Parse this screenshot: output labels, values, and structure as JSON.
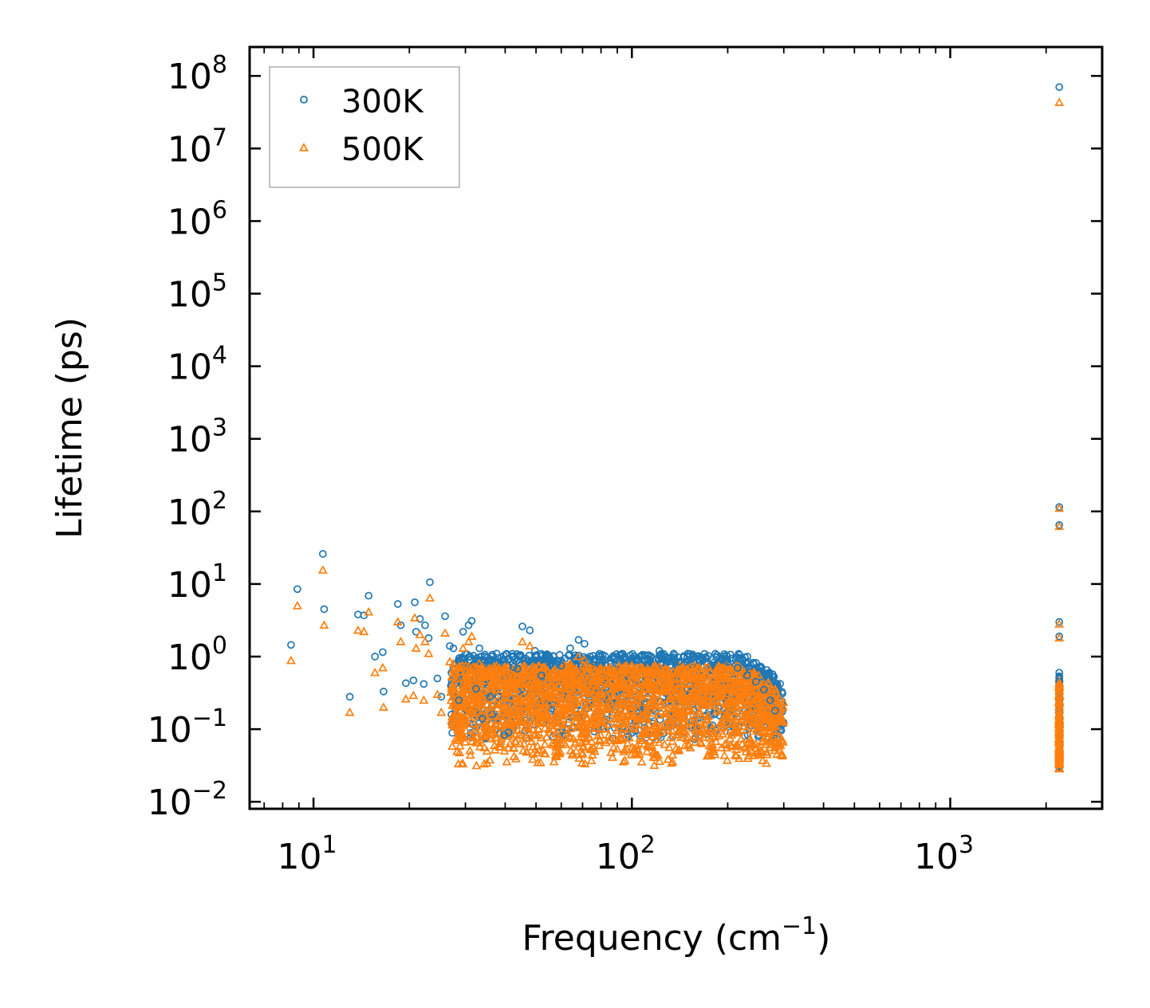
{
  "chart_data": {
    "type": "scatter",
    "title": "",
    "xlabel": "Frequency (cm",
    "xlabel_sup": "−1",
    "xlabel_end": ")",
    "ylabel": "Lifetime (ps)",
    "xscale": "log",
    "yscale": "log",
    "xlim": [
      6.3,
      3000
    ],
    "ylim": [
      0.008,
      250000000.0
    ],
    "x_ticks": [
      {
        "value": 10,
        "base": "10",
        "exp": "1"
      },
      {
        "value": 100,
        "base": "10",
        "exp": "2"
      },
      {
        "value": 1000,
        "base": "10",
        "exp": "3"
      }
    ],
    "y_ticks": [
      {
        "value": 0.01,
        "base": "10",
        "exp": "−2"
      },
      {
        "value": 0.1,
        "base": "10",
        "exp": "−1"
      },
      {
        "value": 1,
        "base": "10",
        "exp": "0"
      },
      {
        "value": 10,
        "base": "10",
        "exp": "1"
      },
      {
        "value": 100,
        "base": "10",
        "exp": "2"
      },
      {
        "value": 1000,
        "base": "10",
        "exp": "3"
      },
      {
        "value": 10000,
        "base": "10",
        "exp": "4"
      },
      {
        "value": 100000,
        "base": "10",
        "exp": "5"
      },
      {
        "value": 1000000,
        "base": "10",
        "exp": "6"
      },
      {
        "value": 10000000,
        "base": "10",
        "exp": "7"
      },
      {
        "value": 100000000,
        "base": "10",
        "exp": "8"
      }
    ],
    "legend": {
      "position": "top-left",
      "entries": [
        "300K",
        "500K"
      ]
    },
    "series": [
      {
        "name": "300K",
        "marker": "circle",
        "color": "#1f77b4",
        "points": [
          [
            8.5,
            1.45
          ],
          [
            8.9,
            8.5
          ],
          [
            10.7,
            26
          ],
          [
            10.8,
            4.5
          ],
          [
            13.0,
            0.28
          ],
          [
            13.8,
            3.8
          ],
          [
            14.4,
            3.7
          ],
          [
            14.9,
            6.9
          ],
          [
            15.6,
            1.0
          ],
          [
            16.5,
            1.15
          ],
          [
            16.6,
            0.33
          ],
          [
            18.4,
            5.3
          ],
          [
            18.8,
            2.7
          ],
          [
            19.5,
            0.43
          ],
          [
            20.6,
            0.47
          ],
          [
            20.8,
            5.6
          ],
          [
            21.0,
            2.2
          ],
          [
            21.6,
            3.3
          ],
          [
            22.2,
            0.42
          ],
          [
            22.4,
            2.7
          ],
          [
            23.0,
            1.8
          ],
          [
            23.2,
            10.6
          ],
          [
            24.5,
            0.5
          ],
          [
            25.2,
            0.28
          ],
          [
            25.9,
            3.6
          ],
          [
            26.8,
            1.4
          ],
          [
            27.5,
            1.3
          ],
          [
            28.6,
            0.25
          ],
          [
            29.5,
            2.2
          ],
          [
            30.7,
            2.7
          ],
          [
            31.4,
            3.1
          ],
          [
            32.4,
            0.36
          ],
          [
            33.2,
            1.3
          ],
          [
            33.9,
            0.14
          ],
          [
            34.5,
            1.0
          ],
          [
            35.9,
            0.28
          ],
          [
            36.4,
            0.16
          ],
          [
            37.6,
            1.1
          ],
          [
            39.8,
            0.083
          ],
          [
            41.0,
            0.09
          ],
          [
            42.5,
            0.72
          ],
          [
            43.7,
            0.68
          ],
          [
            45.3,
            2.6
          ],
          [
            47.8,
            2.3
          ],
          [
            49.6,
            1.2
          ],
          [
            52.0,
            0.55
          ],
          [
            55.0,
            0.9
          ],
          [
            60.0,
            0.75
          ],
          [
            64.0,
            1.3
          ],
          [
            68.0,
            1.7
          ],
          [
            71.0,
            1.5
          ],
          [
            76.0,
            0.85
          ],
          [
            82.0,
            0.9
          ],
          [
            88.0,
            0.95
          ],
          [
            95.0,
            1.0
          ],
          [
            105.0,
            0.9
          ],
          [
            115.0,
            1.0
          ],
          [
            122.0,
            1.2
          ],
          [
            130.0,
            0.95
          ],
          [
            140.0,
            0.85
          ],
          [
            150.0,
            1.1
          ],
          [
            160.0,
            1.0
          ],
          [
            172.0,
            0.95
          ],
          [
            185.0,
            1.05
          ],
          [
            200.0,
            0.85
          ],
          [
            215.0,
            0.7
          ],
          [
            230.0,
            0.55
          ],
          [
            245.0,
            0.45
          ],
          [
            260.0,
            0.35
          ],
          [
            272.0,
            0.25
          ],
          [
            282.0,
            0.18
          ],
          [
            293.0,
            0.1
          ],
          [
            2200,
            70000000.0
          ],
          [
            2200,
            115
          ],
          [
            2200,
            65
          ],
          [
            2200,
            3.0
          ],
          [
            2200,
            1.9
          ],
          [
            2200,
            0.6
          ],
          [
            2200,
            0.45
          ],
          [
            2200,
            0.35
          ],
          [
            2200,
            0.28
          ],
          [
            2200,
            0.22
          ],
          [
            2200,
            0.17
          ],
          [
            2200,
            0.13
          ],
          [
            2200,
            0.1
          ],
          [
            2200,
            0.075
          ],
          [
            2200,
            0.055
          ],
          [
            2200,
            0.042
          ],
          [
            2200,
            0.032
          ]
        ]
      },
      {
        "name": "500K",
        "marker": "triangle",
        "color": "#ff7f0e",
        "points": [
          [
            8.5,
            0.88
          ],
          [
            8.9,
            5.0
          ],
          [
            10.7,
            15.5
          ],
          [
            10.8,
            2.7
          ],
          [
            13.0,
            0.17
          ],
          [
            13.8,
            2.3
          ],
          [
            14.4,
            2.2
          ],
          [
            14.9,
            4.1
          ],
          [
            15.6,
            0.6
          ],
          [
            16.5,
            0.7
          ],
          [
            16.6,
            0.2
          ],
          [
            18.4,
            3.0
          ],
          [
            18.8,
            1.6
          ],
          [
            19.5,
            0.26
          ],
          [
            20.6,
            0.29
          ],
          [
            20.8,
            3.4
          ],
          [
            21.0,
            1.3
          ],
          [
            21.6,
            2.0
          ],
          [
            22.2,
            0.25
          ],
          [
            22.4,
            1.6
          ],
          [
            23.0,
            1.1
          ],
          [
            23.2,
            6.4
          ],
          [
            24.5,
            0.3
          ],
          [
            25.2,
            0.17
          ],
          [
            25.9,
            2.1
          ],
          [
            26.8,
            0.85
          ],
          [
            27.5,
            0.8
          ],
          [
            28.6,
            0.15
          ],
          [
            29.5,
            1.3
          ],
          [
            30.7,
            1.6
          ],
          [
            31.4,
            1.9
          ],
          [
            32.4,
            0.22
          ],
          [
            33.2,
            0.8
          ],
          [
            33.9,
            0.086
          ],
          [
            34.5,
            0.6
          ],
          [
            35.9,
            0.17
          ],
          [
            36.4,
            0.098
          ],
          [
            37.6,
            0.66
          ],
          [
            39.8,
            0.05
          ],
          [
            41.0,
            0.055
          ],
          [
            42.5,
            0.44
          ],
          [
            43.7,
            0.41
          ],
          [
            45.3,
            1.6
          ],
          [
            47.8,
            1.4
          ],
          [
            49.6,
            0.7
          ],
          [
            52.0,
            0.33
          ],
          [
            55.0,
            0.55
          ],
          [
            60.0,
            0.45
          ],
          [
            64.0,
            0.8
          ],
          [
            68.0,
            1.0
          ],
          [
            71.0,
            0.9
          ],
          [
            76.0,
            0.5
          ],
          [
            82.0,
            0.55
          ],
          [
            88.0,
            0.57
          ],
          [
            95.0,
            0.6
          ],
          [
            105.0,
            0.55
          ],
          [
            115.0,
            0.6
          ],
          [
            122.0,
            0.72
          ],
          [
            130.0,
            0.57
          ],
          [
            140.0,
            0.5
          ],
          [
            150.0,
            0.66
          ],
          [
            160.0,
            0.6
          ],
          [
            172.0,
            0.57
          ],
          [
            185.0,
            0.63
          ],
          [
            200.0,
            0.5
          ],
          [
            215.0,
            0.42
          ],
          [
            230.0,
            0.33
          ],
          [
            245.0,
            0.27
          ],
          [
            260.0,
            0.21
          ],
          [
            272.0,
            0.15
          ],
          [
            282.0,
            0.11
          ],
          [
            293.0,
            0.06
          ],
          [
            2200,
            43000000.0
          ],
          [
            2200,
            110
          ],
          [
            2200,
            62
          ],
          [
            2200,
            2.8
          ],
          [
            2200,
            1.8
          ],
          [
            2200,
            0.5
          ],
          [
            2200,
            0.38
          ],
          [
            2200,
            0.3
          ],
          [
            2200,
            0.24
          ],
          [
            2200,
            0.19
          ],
          [
            2200,
            0.15
          ],
          [
            2200,
            0.12
          ],
          [
            2200,
            0.09
          ],
          [
            2200,
            0.068
          ],
          [
            2200,
            0.05
          ],
          [
            2200,
            0.038
          ],
          [
            2200,
            0.029
          ]
        ]
      }
    ],
    "dense_band": {
      "note": "Many overlapping points between ~27 and ~300 cm-1",
      "x_range": [
        27,
        300
      ],
      "series_300K": {
        "upper": 1.1,
        "lower": 0.07
      },
      "series_500K": {
        "upper": 0.75,
        "lower": 0.03
      }
    }
  }
}
